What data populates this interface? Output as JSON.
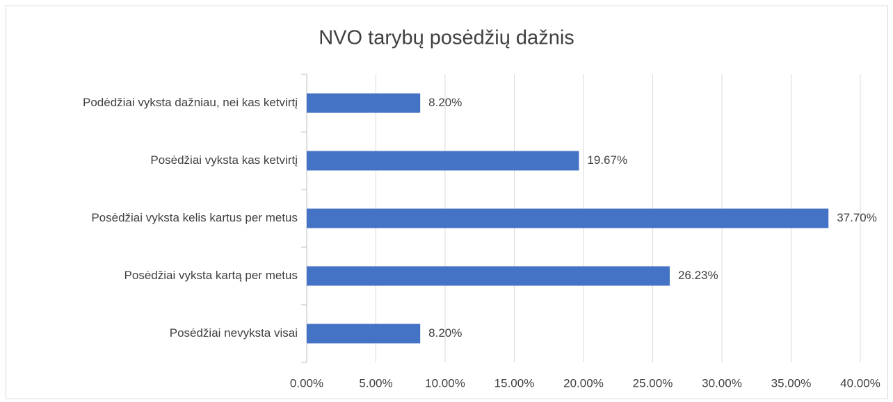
{
  "chart_data": {
    "type": "bar",
    "orientation": "horizontal",
    "title": "NVO tarybų posėdžių dažnis",
    "categories": [
      "Podėdžiai vyksta dažniau, nei kas ketvirtį",
      "Posėdžiai vyksta kas ketvirtį",
      "Posėdžiai vyksta kelis kartus per metus",
      "Posėdžiai vyksta kartą per metus",
      "Posėdžiai nevyksta visai"
    ],
    "values": [
      8.2,
      19.67,
      37.7,
      26.23,
      8.2
    ],
    "value_labels": [
      "8.20%",
      "19.67%",
      "37.70%",
      "26.23%",
      "8.20%"
    ],
    "color": "#4472c4",
    "xlim": [
      0,
      40
    ],
    "xticks": [
      {
        "value": 0,
        "label": "0.00%"
      },
      {
        "value": 5,
        "label": "5.00%"
      },
      {
        "value": 10,
        "label": "10.00%"
      },
      {
        "value": 15,
        "label": "15.00%"
      },
      {
        "value": 20,
        "label": "20.00%"
      },
      {
        "value": 25,
        "label": "25.00%"
      },
      {
        "value": 30,
        "label": "30.00%"
      },
      {
        "value": 35,
        "label": "35.00%"
      },
      {
        "value": 40,
        "label": "40.00%"
      }
    ],
    "grid": true
  }
}
